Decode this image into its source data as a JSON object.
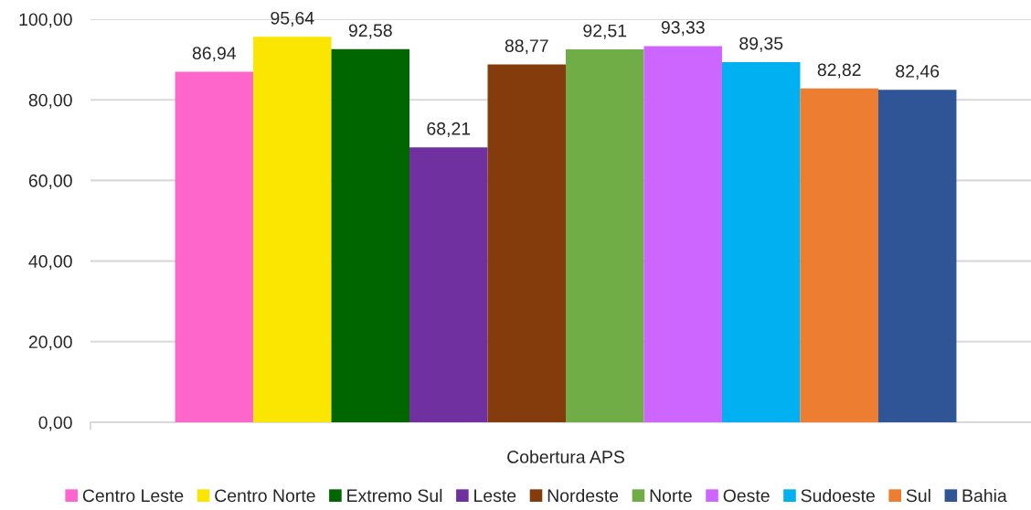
{
  "chart_data": {
    "type": "bar",
    "categories": [
      "Cobertura APS"
    ],
    "series": [
      {
        "name": "Centro Leste",
        "color": "#ff66cc",
        "values": [
          86.94
        ],
        "value_labels": [
          "86,94"
        ]
      },
      {
        "name": "Centro Norte",
        "color": "#fae600",
        "values": [
          95.64
        ],
        "value_labels": [
          "95,64"
        ]
      },
      {
        "name": "Extremo Sul",
        "color": "#006600",
        "values": [
          92.58
        ],
        "value_labels": [
          "92,58"
        ]
      },
      {
        "name": "Leste",
        "color": "#7030a0",
        "values": [
          68.21
        ],
        "value_labels": [
          "68,21"
        ]
      },
      {
        "name": "Nordeste",
        "color": "#843c0c",
        "values": [
          88.77
        ],
        "value_labels": [
          "88,77"
        ]
      },
      {
        "name": "Norte",
        "color": "#70ad47",
        "values": [
          92.51
        ],
        "value_labels": [
          "92,51"
        ]
      },
      {
        "name": "Oeste",
        "color": "#cc66ff",
        "values": [
          93.33
        ],
        "value_labels": [
          "93,33"
        ]
      },
      {
        "name": "Sudoeste",
        "color": "#00b0f0",
        "values": [
          89.35
        ],
        "value_labels": [
          "89,35"
        ]
      },
      {
        "name": "Sul",
        "color": "#ed7d31",
        "values": [
          82.82
        ],
        "value_labels": [
          "82,82"
        ]
      },
      {
        "name": "Bahia",
        "color": "#2f5597",
        "values": [
          82.46
        ],
        "value_labels": [
          "82,46"
        ]
      }
    ],
    "ylim": [
      0,
      100
    ],
    "yticks": [
      {
        "value": 0,
        "label": "0,00"
      },
      {
        "value": 20,
        "label": "20,00"
      },
      {
        "value": 40,
        "label": "40,00"
      },
      {
        "value": 60,
        "label": "60,00"
      },
      {
        "value": 80,
        "label": "80,00"
      },
      {
        "value": 100,
        "label": "100,00"
      }
    ],
    "grid": "y",
    "legend": "bottom"
  }
}
